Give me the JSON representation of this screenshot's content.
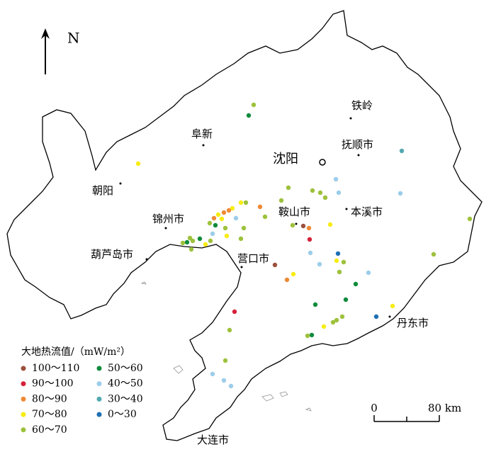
{
  "north": "N",
  "cities": [
    {
      "label": "铁岭"
    },
    {
      "label": "阜新"
    },
    {
      "label": "抚顺市"
    },
    {
      "label": "沈阳"
    },
    {
      "label": "朝阳"
    },
    {
      "label": "锦州市"
    },
    {
      "label": "鞍山市"
    },
    {
      "label": "本溪市"
    },
    {
      "label": "葫芦岛市"
    },
    {
      "label": "营口市"
    },
    {
      "label": "丹东市"
    },
    {
      "label": "大连市"
    }
  ],
  "legend": {
    "title": "大地热流值/（mW/m²）",
    "items": [
      {
        "label": "100～110",
        "color": "#9c4f3c"
      },
      {
        "label": "90～100",
        "color": "#d6213a"
      },
      {
        "label": "80～90",
        "color": "#ee8a35"
      },
      {
        "label": "70～80",
        "color": "#f7ec14"
      },
      {
        "label": "60～70",
        "color": "#9dc13b"
      },
      {
        "label": "50～60",
        "color": "#0f8b3c"
      },
      {
        "label": "40～50",
        "color": "#9ccdea"
      },
      {
        "label": "30～40",
        "color": "#52a9b0"
      },
      {
        "label": "0～30",
        "color": "#1f6fb3"
      }
    ]
  },
  "scale_bar": {
    "start": 0,
    "end": {
      "value": 80,
      "label": "80 km"
    }
  }
}
